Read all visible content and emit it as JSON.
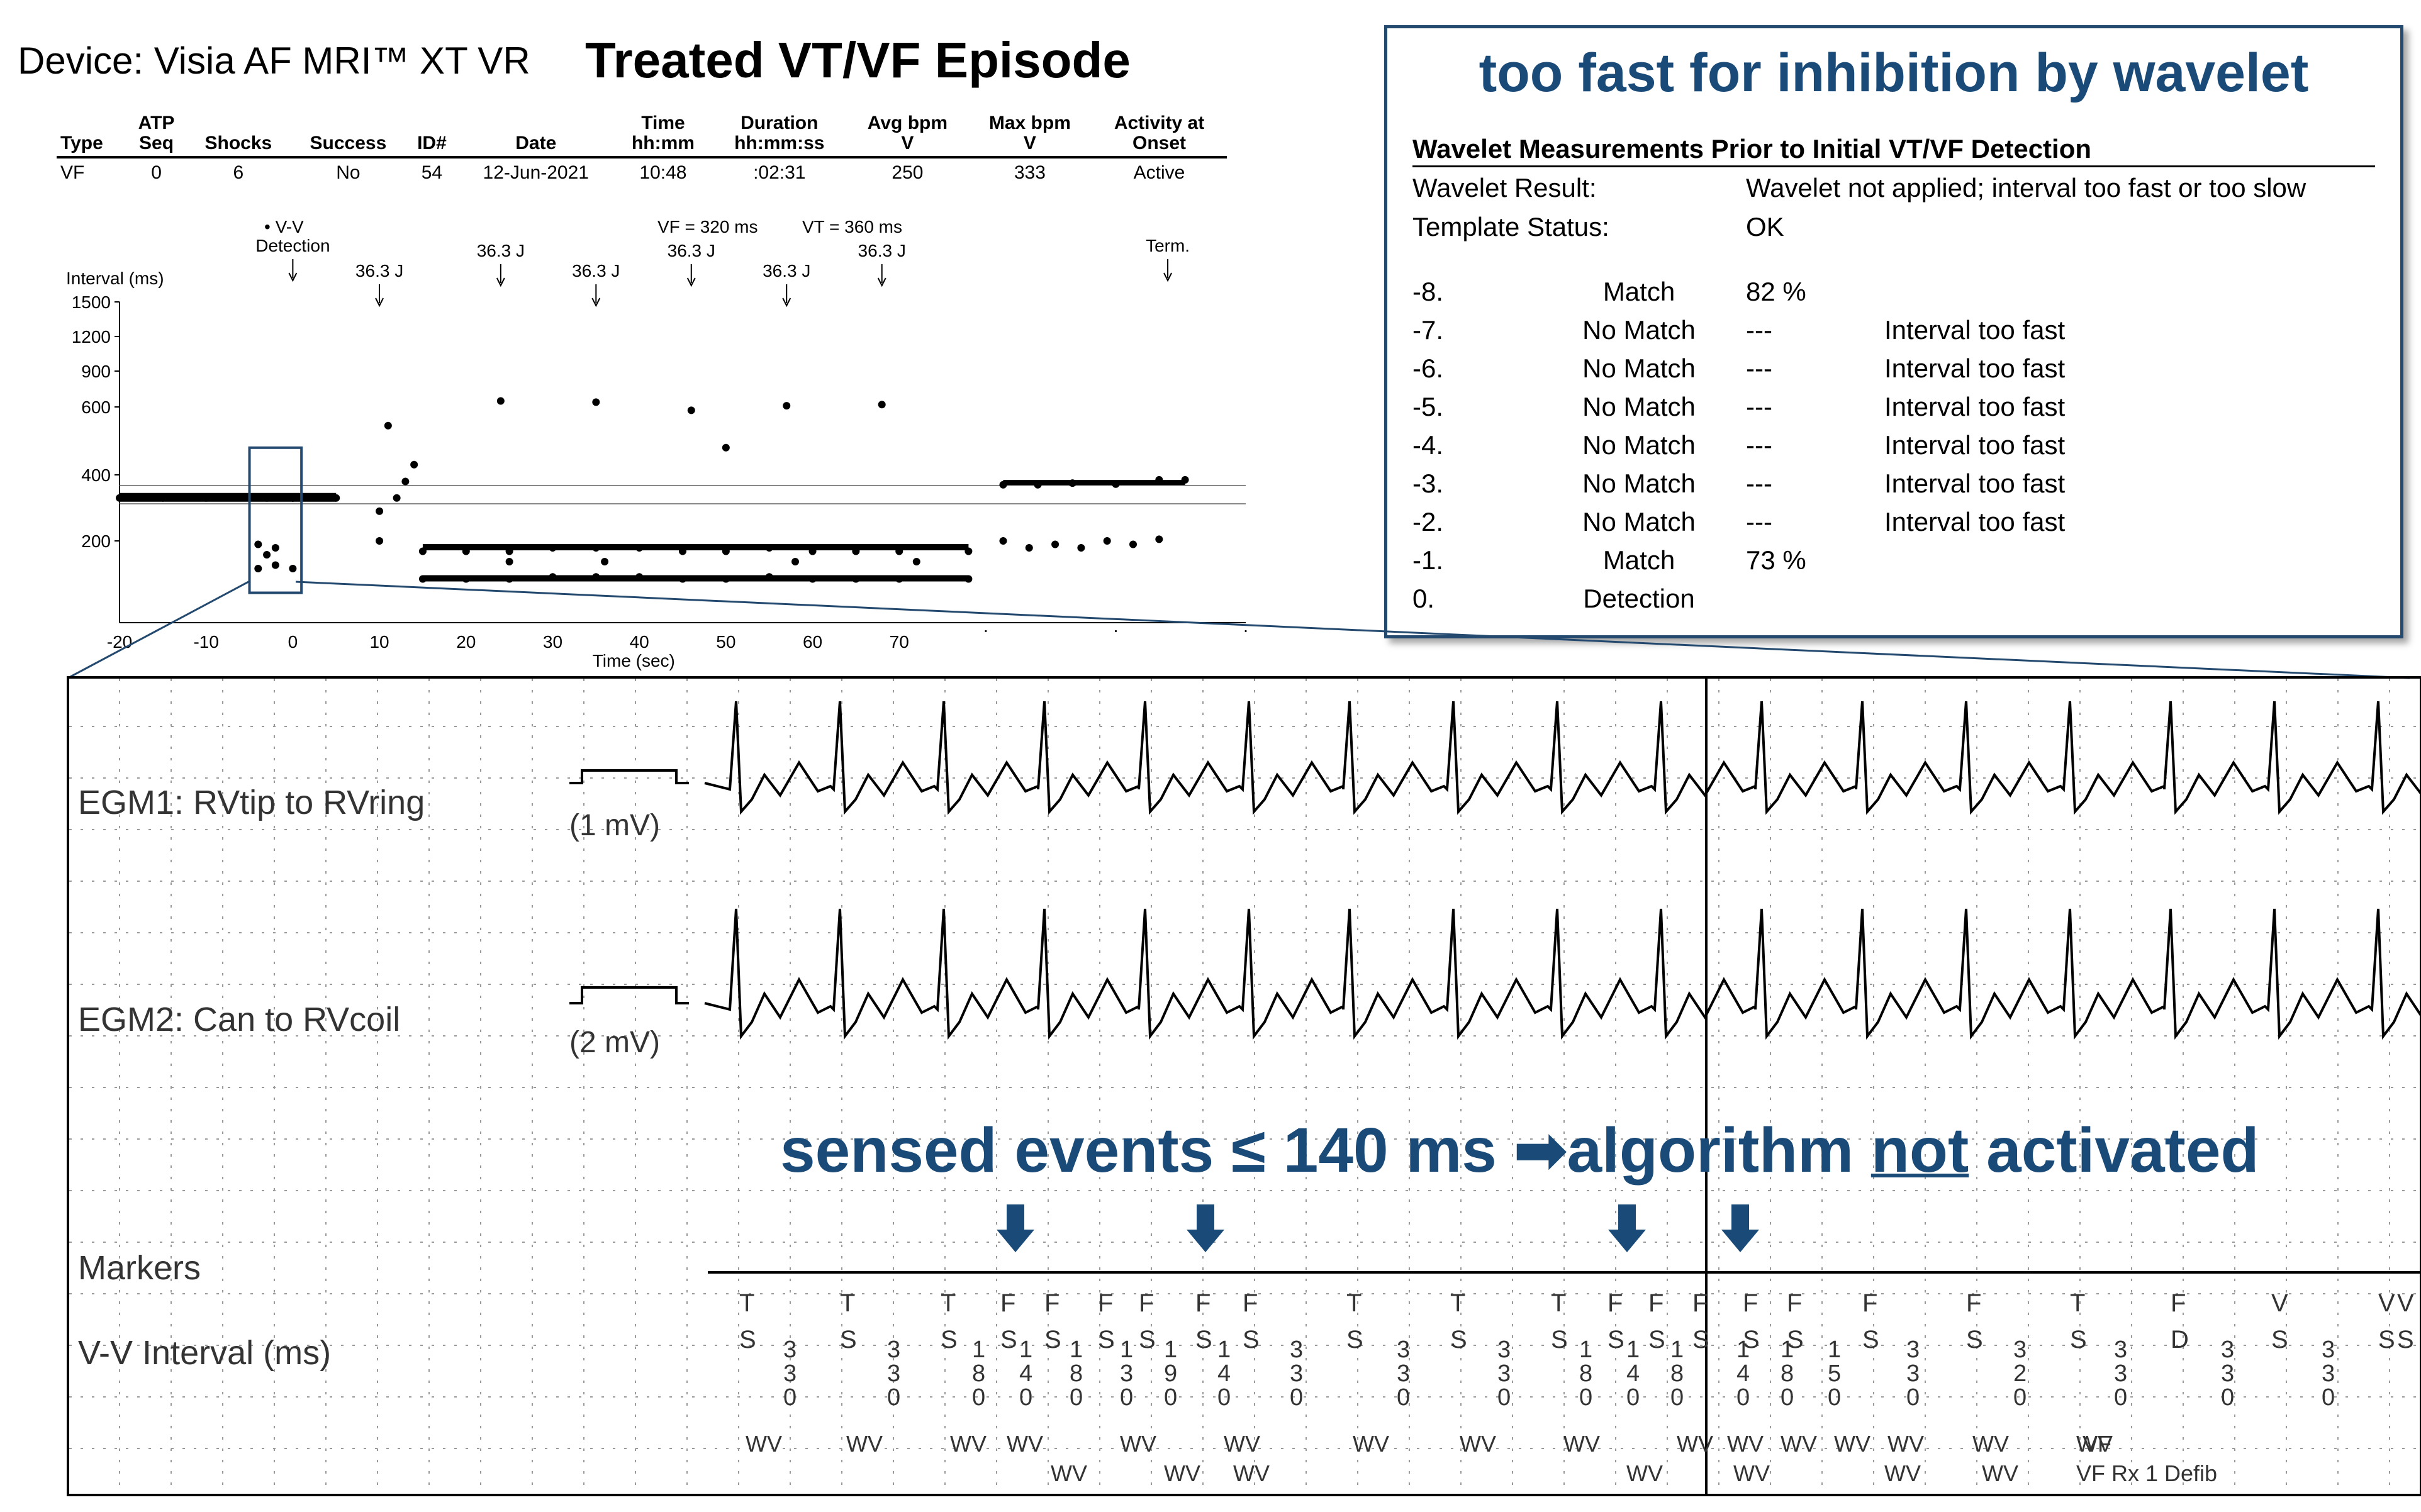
{
  "device": "Device: Visia AF MRI™ XT VR",
  "title": "Treated VT/VF Episode",
  "summary": {
    "headers": [
      [
        "",
        "Type"
      ],
      [
        "ATP",
        "Seq"
      ],
      [
        "",
        "Shocks"
      ],
      [
        "",
        "Success"
      ],
      [
        "",
        "ID#"
      ],
      [
        "",
        "Date"
      ],
      [
        "Time",
        "hh:mm"
      ],
      [
        "Duration",
        "hh:mm:ss"
      ],
      [
        "Avg bpm",
        "V"
      ],
      [
        "Max bpm",
        "V"
      ],
      [
        "Activity at",
        "Onset"
      ]
    ],
    "row": [
      "VF",
      "0",
      "6",
      "No",
      "54",
      "12-Jun-2021",
      "10:48",
      ":02:31",
      "250",
      "333",
      "Active"
    ]
  },
  "callout": {
    "title": "too fast for inhibition by wavelet",
    "heading": "Wavelet Measurements Prior to Initial VT/VF Detection",
    "result_label": "Wavelet Result:",
    "result_value": "Wavelet not applied; interval too fast or too slow",
    "template_label": "Template Status:",
    "template_value": "OK",
    "rows": [
      {
        "n": "-8.",
        "match": "Match",
        "pct": "82 %",
        "note": ""
      },
      {
        "n": "-7.",
        "match": "No Match",
        "pct": "---",
        "note": "Interval too fast"
      },
      {
        "n": "-6.",
        "match": "No Match",
        "pct": "---",
        "note": "Interval too fast"
      },
      {
        "n": "-5.",
        "match": "No Match",
        "pct": "---",
        "note": "Interval too fast"
      },
      {
        "n": "-4.",
        "match": "No Match",
        "pct": "---",
        "note": "Interval too fast"
      },
      {
        "n": "-3.",
        "match": "No Match",
        "pct": "---",
        "note": "Interval too fast"
      },
      {
        "n": "-2.",
        "match": "No Match",
        "pct": "---",
        "note": "Interval too fast"
      },
      {
        "n": "-1.",
        "match": "Match",
        "pct": "73 %",
        "note": ""
      },
      {
        "n": "0.",
        "match": "Detection",
        "pct": "",
        "note": ""
      }
    ]
  },
  "chart_data": {
    "type": "scatter",
    "title": "Treated VT/VF Episode",
    "xlabel": "Time (sec)",
    "ylabel": "Interval (ms)",
    "legend": "• V-V",
    "thresholds": {
      "vf_label": "VF = 320 ms",
      "vt_label": "VT = 360 ms",
      "vf": 320,
      "vt": 360
    },
    "xlim": [
      -20,
      110
    ],
    "xticks": [
      -20,
      -10,
      0,
      10,
      20,
      30,
      40,
      50,
      60,
      70
    ],
    "yticks": [
      1500,
      1200,
      900,
      600,
      400,
      200
    ],
    "events": [
      {
        "label": "Detection",
        "x": 0
      },
      {
        "label": "36.3 J",
        "x": 10
      },
      {
        "label": "36.3 J",
        "x": 24
      },
      {
        "label": "36.3 J",
        "x": 35
      },
      {
        "label": "36.3 J",
        "x": 46
      },
      {
        "label": "36.3 J",
        "x": 57
      },
      {
        "label": "36.3 J",
        "x": 68
      },
      {
        "label": "Term.",
        "x": 101
      }
    ],
    "series": [
      {
        "name": "baseline",
        "points": [
          [
            -20,
            330
          ],
          [
            -15,
            330
          ],
          [
            -10,
            330
          ],
          [
            -5,
            330
          ],
          [
            0,
            330
          ],
          [
            5,
            330
          ]
        ]
      },
      {
        "name": "detection",
        "points": [
          [
            -4,
            195
          ],
          [
            -3,
            180
          ],
          [
            -2,
            190
          ],
          [
            -4,
            160
          ],
          [
            -2,
            165
          ],
          [
            0,
            160
          ],
          [
            -3,
            330
          ],
          [
            0,
            330
          ]
        ]
      },
      {
        "name": "post-shock",
        "points": [
          [
            10,
            290
          ],
          [
            10,
            200
          ],
          [
            11,
            545
          ],
          [
            12,
            330
          ],
          [
            13,
            380
          ],
          [
            14,
            430
          ],
          [
            24,
            650
          ],
          [
            25,
            170
          ],
          [
            35,
            640
          ],
          [
            36,
            170
          ],
          [
            46,
            590
          ],
          [
            50,
            480
          ],
          [
            57,
            610
          ],
          [
            58,
            170
          ],
          [
            68,
            620
          ],
          [
            72,
            170
          ]
        ]
      },
      {
        "name": "vf-band",
        "points": [
          [
            15,
            185
          ],
          [
            20,
            185
          ],
          [
            25,
            185
          ],
          [
            30,
            190
          ],
          [
            35,
            190
          ],
          [
            40,
            190
          ],
          [
            45,
            185
          ],
          [
            50,
            185
          ],
          [
            55,
            190
          ],
          [
            60,
            185
          ],
          [
            65,
            185
          ],
          [
            70,
            185
          ],
          [
            78,
            185
          ],
          [
            15,
            145
          ],
          [
            20,
            145
          ],
          [
            25,
            145
          ],
          [
            30,
            148
          ],
          [
            35,
            148
          ],
          [
            40,
            148
          ],
          [
            45,
            145
          ],
          [
            50,
            145
          ],
          [
            55,
            148
          ],
          [
            60,
            145
          ],
          [
            65,
            145
          ],
          [
            70,
            145
          ],
          [
            78,
            145
          ]
        ]
      },
      {
        "name": "post-term",
        "points": [
          [
            82,
            370
          ],
          [
            86,
            370
          ],
          [
            90,
            375
          ],
          [
            95,
            372
          ],
          [
            100,
            385
          ],
          [
            103,
            385
          ],
          [
            82,
            200
          ],
          [
            85,
            190
          ],
          [
            88,
            195
          ],
          [
            91,
            190
          ],
          [
            94,
            200
          ],
          [
            97,
            195
          ],
          [
            100,
            205
          ]
        ]
      }
    ]
  },
  "egm": {
    "ch1_label": "EGM1: RVtip to RVring",
    "ch1_scale": "(1 mV)",
    "ch2_label": "EGM2: Can to RVcoil",
    "ch2_scale": "(2 mV)",
    "markers_label": "Markers",
    "vv_label": "V-V Interval (ms)"
  },
  "annotation": {
    "before": "sensed events ≤ 140 ms",
    "arrow": "➡",
    "middle": "algorithm ",
    "not": "not",
    "after": " activated"
  },
  "markers": {
    "top": [
      "T",
      "T",
      "T",
      "F",
      "F",
      "F",
      "F",
      "F",
      "F",
      "T",
      "T",
      "T",
      "F",
      "F",
      "F",
      "F",
      "F",
      "F",
      "F",
      "T",
      "F",
      "V",
      "V",
      "V"
    ],
    "bottom": [
      "S",
      "S",
      "S",
      "S",
      "S",
      "S",
      "S",
      "S",
      "S",
      "S",
      "S",
      "S",
      "S",
      "S",
      "S",
      "S",
      "S",
      "S",
      "S",
      "S",
      "D",
      "S",
      "S",
      "S"
    ],
    "intervals": [
      "330",
      "330",
      "180",
      "140",
      "180",
      "130",
      "190",
      "140",
      "330",
      "330",
      "330",
      "180",
      "140",
      "180",
      "140",
      "180",
      "150",
      "330",
      "320",
      "330",
      "330",
      "330"
    ],
    "wv_row1": [
      "WV",
      "WV",
      "WV",
      "WV",
      "WV",
      "WV",
      "WV",
      "WV",
      "WV",
      "WV",
      "WV",
      "WV",
      "WV",
      "WV",
      "WV",
      "WV",
      "VF"
    ],
    "wv_row2": [
      "WV",
      "WV",
      "WV",
      "WV",
      "WV",
      "WV",
      "WV",
      "VF Rx 1 Defib"
    ]
  },
  "colors": {
    "accent": "#1a4b78",
    "frame": "#24496f",
    "grid": "#888888"
  }
}
